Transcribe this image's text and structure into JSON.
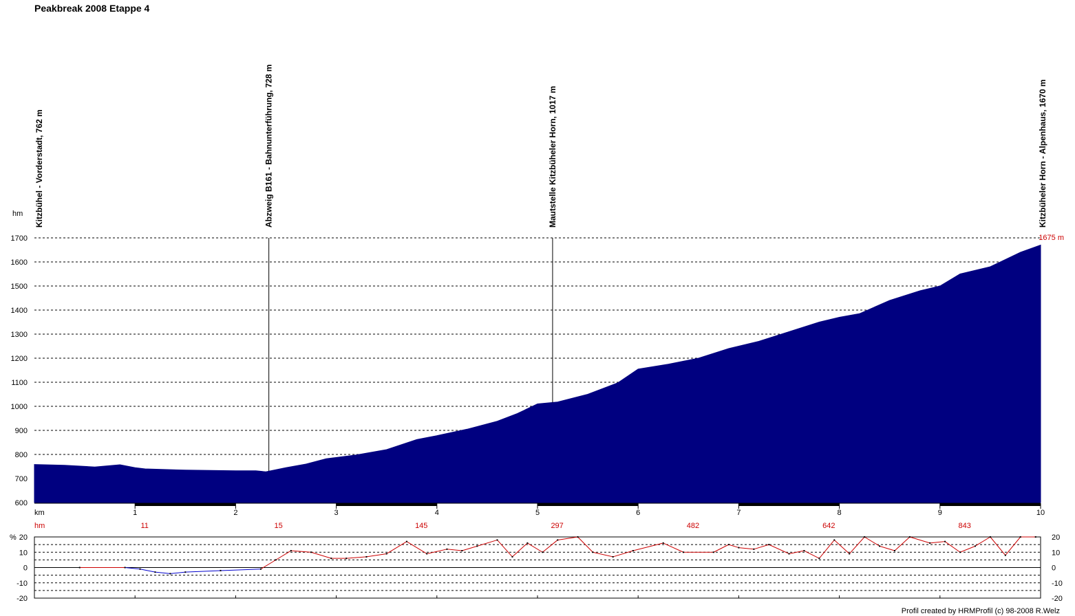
{
  "title": "Peakbreak 2008 Etappe 4",
  "credit": "Profil created by HRMProfil (c) 98-2008 R.Welz",
  "colors": {
    "profile_fill": "#000080",
    "grade_line": "#cc0000",
    "grade_line_down": "#0000cc",
    "accent_text": "#cc0000"
  },
  "chart_data": [
    {
      "type": "area",
      "xlabel": "km",
      "ylabel": "hm",
      "xlim": [
        0,
        10
      ],
      "ylim": [
        600,
        1700
      ],
      "x_ticks": [
        1,
        2,
        3,
        4,
        5,
        6,
        7,
        8,
        9,
        10
      ],
      "y_ticks": [
        600,
        700,
        800,
        900,
        1000,
        1100,
        1200,
        1300,
        1400,
        1500,
        1600,
        1700
      ],
      "grid": true,
      "max_label": "1675 m",
      "x": [
        0,
        0.3,
        0.6,
        0.85,
        1.0,
        1.1,
        1.5,
        2.0,
        2.2,
        2.3,
        2.5,
        2.7,
        2.9,
        3.2,
        3.5,
        3.8,
        4.0,
        4.3,
        4.6,
        4.8,
        5.0,
        5.2,
        5.5,
        5.8,
        6.0,
        6.3,
        6.6,
        6.9,
        7.2,
        7.5,
        7.8,
        8.0,
        8.2,
        8.5,
        8.8,
        9.0,
        9.2,
        9.5,
        9.8,
        10.0
      ],
      "y": [
        758,
        755,
        748,
        757,
        745,
        740,
        735,
        732,
        732,
        728,
        745,
        760,
        782,
        798,
        820,
        862,
        878,
        905,
        938,
        970,
        1010,
        1018,
        1050,
        1098,
        1155,
        1175,
        1200,
        1240,
        1270,
        1310,
        1350,
        1370,
        1385,
        1440,
        1480,
        1500,
        1550,
        1580,
        1640,
        1670
      ],
      "cumulative_ascent_label": "hm",
      "cumulative_ascent": [
        {
          "km": 1,
          "hm": "11"
        },
        {
          "km": 2.33,
          "hm": "15"
        },
        {
          "km": 3.75,
          "hm": "145"
        },
        {
          "km": 5.1,
          "hm": "297"
        },
        {
          "km": 6.45,
          "hm": "482"
        },
        {
          "km": 7.8,
          "hm": "642"
        },
        {
          "km": 9.15,
          "hm": "843"
        }
      ],
      "waypoints": [
        {
          "km": 0,
          "label": "Kitzbühel - Vorderstadt, 762 m"
        },
        {
          "km": 2.33,
          "label": "Abzweig B161 - Bahnunterführung, 728 m"
        },
        {
          "km": 5.15,
          "label": "Mautstelle Kitzbüheler Horn, 1017 m"
        },
        {
          "km": 10,
          "label": "Kitzbüheler Horn - Alpenhaus, 1670 m"
        }
      ]
    },
    {
      "type": "line",
      "ylabel": "%",
      "xlim": [
        0,
        10
      ],
      "ylim": [
        -20,
        20
      ],
      "y_ticks": [
        -20,
        -10,
        0,
        10,
        20
      ],
      "grid": true,
      "x": [
        0.45,
        0.9,
        1.05,
        1.2,
        1.35,
        1.5,
        1.85,
        2.25,
        2.4,
        2.55,
        2.75,
        2.95,
        3.1,
        3.3,
        3.5,
        3.7,
        3.9,
        4.1,
        4.25,
        4.4,
        4.6,
        4.75,
        4.9,
        5.05,
        5.2,
        5.4,
        5.55,
        5.75,
        5.95,
        6.25,
        6.45,
        6.75,
        6.9,
        7.0,
        7.15,
        7.3,
        7.5,
        7.65,
        7.8,
        7.95,
        8.1,
        8.25,
        8.4,
        8.55,
        8.7,
        8.9,
        9.05,
        9.2,
        9.35,
        9.5,
        9.65,
        9.8,
        9.95
      ],
      "y": [
        0,
        0,
        -1,
        -3,
        -4,
        -3,
        -2,
        -1,
        5,
        11,
        10,
        6,
        6,
        7,
        9,
        17,
        9,
        12,
        11,
        14,
        18,
        7,
        16,
        10,
        18,
        20,
        10,
        7,
        11,
        16,
        10,
        10,
        15,
        13,
        12,
        15,
        9,
        11,
        6,
        18,
        9,
        20,
        14,
        11,
        20,
        16,
        17,
        10,
        14,
        20,
        8,
        20,
        20
      ]
    }
  ]
}
